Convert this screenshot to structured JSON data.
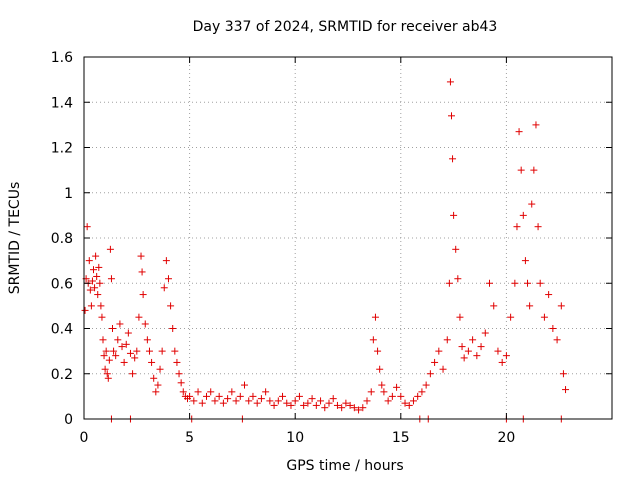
{
  "chart_data": {
    "type": "scatter",
    "title": "Day 337 of 2024, SRMTID for receiver ab43",
    "xlabel": "GPS time / hours",
    "ylabel": "SRMTID / TECUs",
    "xlim": [
      0,
      25
    ],
    "ylim": [
      0,
      1.6
    ],
    "grid": true,
    "marker": "+",
    "color": "#e00000",
    "xticks": [
      0,
      5,
      10,
      15,
      20
    ],
    "yticks": [
      0,
      0.2,
      0.4,
      0.6,
      0.8,
      1,
      1.2,
      1.4,
      1.6
    ],
    "xtick_labels": [
      "0",
      "5",
      "10",
      "15",
      "20"
    ],
    "ytick_labels": [
      "0",
      "0.2",
      "0.4",
      "0.6",
      "0.8",
      "1",
      "1.2",
      "1.4",
      "1.6"
    ],
    "series": [
      {
        "name": "ab43",
        "points": [
          [
            0.05,
            0.48
          ],
          [
            0.1,
            0.62
          ],
          [
            0.15,
            0.85
          ],
          [
            0.2,
            0.6
          ],
          [
            0.25,
            0.7
          ],
          [
            0.3,
            0.57
          ],
          [
            0.35,
            0.5
          ],
          [
            0.4,
            0.61
          ],
          [
            0.45,
            0.66
          ],
          [
            0.5,
            0.58
          ],
          [
            0.55,
            0.72
          ],
          [
            0.6,
            0.63
          ],
          [
            0.65,
            0.55
          ],
          [
            0.7,
            0.67
          ],
          [
            0.75,
            0.6
          ],
          [
            0.8,
            0.5
          ],
          [
            0.85,
            0.45
          ],
          [
            0.9,
            0.35
          ],
          [
            0.95,
            0.28
          ],
          [
            1.0,
            0.22
          ],
          [
            1.05,
            0.3
          ],
          [
            1.1,
            0.2
          ],
          [
            1.15,
            0.18
          ],
          [
            1.2,
            0.26
          ],
          [
            1.25,
            0.75
          ],
          [
            1.3,
            0.62
          ],
          [
            1.35,
            0.4
          ],
          [
            1.4,
            0.3
          ],
          [
            1.5,
            0.28
          ],
          [
            1.6,
            0.35
          ],
          [
            1.7,
            0.42
          ],
          [
            1.8,
            0.32
          ],
          [
            1.9,
            0.25
          ],
          [
            2.0,
            0.33
          ],
          [
            2.1,
            0.38
          ],
          [
            2.2,
            0.29
          ],
          [
            2.3,
            0.2
          ],
          [
            2.4,
            0.27
          ],
          [
            2.5,
            0.3
          ],
          [
            2.6,
            0.45
          ],
          [
            2.7,
            0.72
          ],
          [
            2.75,
            0.65
          ],
          [
            2.8,
            0.55
          ],
          [
            2.9,
            0.42
          ],
          [
            3.0,
            0.35
          ],
          [
            3.1,
            0.3
          ],
          [
            3.2,
            0.25
          ],
          [
            3.3,
            0.18
          ],
          [
            3.4,
            0.12
          ],
          [
            3.5,
            0.15
          ],
          [
            3.6,
            0.22
          ],
          [
            3.7,
            0.3
          ],
          [
            3.8,
            0.58
          ],
          [
            3.9,
            0.7
          ],
          [
            4.0,
            0.62
          ],
          [
            4.1,
            0.5
          ],
          [
            4.2,
            0.4
          ],
          [
            4.3,
            0.3
          ],
          [
            4.4,
            0.25
          ],
          [
            4.5,
            0.2
          ],
          [
            4.6,
            0.16
          ],
          [
            4.7,
            0.12
          ],
          [
            4.8,
            0.1
          ],
          [
            4.9,
            0.09
          ],
          [
            5.0,
            0.1
          ],
          [
            5.2,
            0.08
          ],
          [
            5.4,
            0.12
          ],
          [
            5.6,
            0.07
          ],
          [
            5.8,
            0.1
          ],
          [
            6.0,
            0.12
          ],
          [
            6.2,
            0.08
          ],
          [
            6.4,
            0.1
          ],
          [
            6.6,
            0.07
          ],
          [
            6.8,
            0.09
          ],
          [
            7.0,
            0.12
          ],
          [
            7.2,
            0.08
          ],
          [
            7.4,
            0.1
          ],
          [
            7.6,
            0.15
          ],
          [
            7.8,
            0.08
          ],
          [
            8.0,
            0.1
          ],
          [
            8.2,
            0.07
          ],
          [
            8.4,
            0.09
          ],
          [
            8.6,
            0.12
          ],
          [
            8.8,
            0.08
          ],
          [
            9.0,
            0.06
          ],
          [
            9.2,
            0.08
          ],
          [
            9.4,
            0.1
          ],
          [
            9.6,
            0.07
          ],
          [
            9.8,
            0.06
          ],
          [
            10.0,
            0.08
          ],
          [
            10.2,
            0.1
          ],
          [
            10.4,
            0.06
          ],
          [
            10.6,
            0.07
          ],
          [
            10.8,
            0.09
          ],
          [
            11.0,
            0.06
          ],
          [
            11.2,
            0.08
          ],
          [
            11.4,
            0.05
          ],
          [
            11.6,
            0.07
          ],
          [
            11.8,
            0.09
          ],
          [
            12.0,
            0.06
          ],
          [
            12.2,
            0.05
          ],
          [
            12.4,
            0.07
          ],
          [
            12.6,
            0.06
          ],
          [
            12.8,
            0.05
          ],
          [
            13.0,
            0.04
          ],
          [
            13.2,
            0.05
          ],
          [
            13.4,
            0.08
          ],
          [
            13.6,
            0.12
          ],
          [
            13.7,
            0.35
          ],
          [
            13.8,
            0.45
          ],
          [
            13.9,
            0.3
          ],
          [
            14.0,
            0.22
          ],
          [
            14.1,
            0.15
          ],
          [
            14.2,
            0.12
          ],
          [
            14.4,
            0.08
          ],
          [
            14.6,
            0.1
          ],
          [
            14.8,
            0.14
          ],
          [
            15.0,
            0.1
          ],
          [
            15.2,
            0.07
          ],
          [
            15.4,
            0.06
          ],
          [
            15.6,
            0.08
          ],
          [
            15.8,
            0.1
          ],
          [
            16.0,
            0.12
          ],
          [
            16.2,
            0.15
          ],
          [
            16.4,
            0.2
          ],
          [
            16.6,
            0.25
          ],
          [
            16.8,
            0.3
          ],
          [
            17.0,
            0.22
          ],
          [
            17.2,
            0.35
          ],
          [
            17.3,
            0.6
          ],
          [
            17.35,
            1.49
          ],
          [
            17.4,
            1.34
          ],
          [
            17.45,
            1.15
          ],
          [
            17.5,
            0.9
          ],
          [
            17.6,
            0.75
          ],
          [
            17.7,
            0.62
          ],
          [
            17.8,
            0.45
          ],
          [
            17.9,
            0.32
          ],
          [
            18.0,
            0.27
          ],
          [
            18.2,
            0.3
          ],
          [
            18.4,
            0.35
          ],
          [
            18.6,
            0.28
          ],
          [
            18.8,
            0.32
          ],
          [
            19.0,
            0.38
          ],
          [
            19.2,
            0.6
          ],
          [
            19.4,
            0.5
          ],
          [
            19.6,
            0.3
          ],
          [
            19.8,
            0.25
          ],
          [
            20.0,
            0.28
          ],
          [
            20.2,
            0.45
          ],
          [
            20.4,
            0.6
          ],
          [
            20.5,
            0.85
          ],
          [
            20.6,
            1.27
          ],
          [
            20.7,
            1.1
          ],
          [
            20.8,
            0.9
          ],
          [
            20.9,
            0.7
          ],
          [
            21.0,
            0.6
          ],
          [
            21.1,
            0.5
          ],
          [
            21.2,
            0.95
          ],
          [
            21.3,
            1.1
          ],
          [
            21.4,
            1.3
          ],
          [
            21.5,
            0.85
          ],
          [
            21.6,
            0.6
          ],
          [
            21.8,
            0.45
          ],
          [
            22.0,
            0.55
          ],
          [
            22.2,
            0.4
          ],
          [
            22.4,
            0.35
          ],
          [
            22.6,
            0.5
          ],
          [
            22.7,
            0.2
          ],
          [
            22.8,
            0.13
          ],
          [
            1.3,
            0.0
          ],
          [
            2.2,
            0.0
          ],
          [
            5.1,
            0.0
          ],
          [
            7.5,
            0.0
          ],
          [
            15.9,
            0.0
          ],
          [
            16.3,
            0.0
          ],
          [
            20.0,
            0.0
          ],
          [
            20.8,
            0.0
          ],
          [
            22.6,
            0.0
          ]
        ]
      }
    ]
  }
}
